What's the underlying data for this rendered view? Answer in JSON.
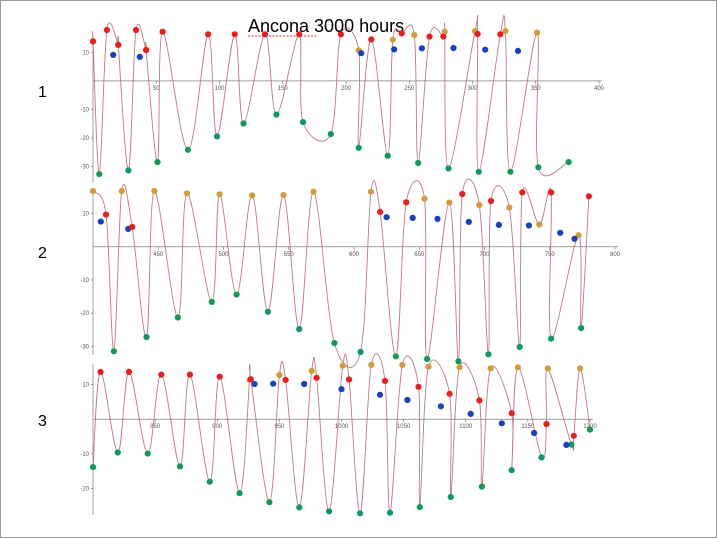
{
  "title": "Ancona  3000 hours",
  "marker_colors": {
    "red": "#ee1c1c",
    "blue": "#1a3fbf",
    "gold": "#d39c3a",
    "green": "#0e9a5c"
  },
  "curve_color": "#b76b73",
  "chart_data": [
    {
      "label": "1",
      "type": "line",
      "x_range": [
        0,
        400
      ],
      "y_range": [
        -35,
        15
      ],
      "x_ticks": [
        "50",
        "100",
        "150",
        "200",
        "250",
        "300",
        "350",
        "400"
      ],
      "y_ticks": [
        "10",
        "-10",
        "-20",
        "-30"
      ],
      "peaks": [
        {
          "x": 0,
          "y": 13.8
        },
        {
          "x": 11,
          "y": 17.8
        },
        {
          "x": 20,
          "y": 12.6
        },
        {
          "x": 34,
          "y": 17.8
        },
        {
          "x": 42,
          "y": 10.8
        },
        {
          "x": 55,
          "y": 17.2
        },
        {
          "x": 91,
          "y": 16.3
        },
        {
          "x": 112,
          "y": 16.3
        },
        {
          "x": 136,
          "y": 16.3
        },
        {
          "x": 163,
          "y": 16.3
        },
        {
          "x": 196,
          "y": 16.3
        },
        {
          "x": 220,
          "y": 14.5
        },
        {
          "x": 244,
          "y": 16.6
        },
        {
          "x": 266,
          "y": 15.5
        },
        {
          "x": 277,
          "y": 15.5
        },
        {
          "x": 304,
          "y": 16.4
        },
        {
          "x": 322,
          "y": 16.3
        }
      ],
      "subpeaks": [
        {
          "x": 16,
          "y": 9.1
        },
        {
          "x": 37,
          "y": 8.4
        },
        {
          "x": 212,
          "y": 9.7
        },
        {
          "x": 238,
          "y": 11.0
        },
        {
          "x": 260,
          "y": 11.4
        },
        {
          "x": 285,
          "y": 11.5
        },
        {
          "x": 310,
          "y": 10.9
        },
        {
          "x": 336,
          "y": 10.5
        }
      ],
      "gold": [
        {
          "x": 0,
          "y": 13.8
        },
        {
          "x": 20,
          "y": 12.6
        },
        {
          "x": 42,
          "y": 10.8
        },
        {
          "x": 210,
          "y": 10.7
        },
        {
          "x": 237,
          "y": 14.4
        },
        {
          "x": 254,
          "y": 16.0
        },
        {
          "x": 278,
          "y": 17.2
        },
        {
          "x": 302,
          "y": 17.4
        },
        {
          "x": 326,
          "y": 17.4
        },
        {
          "x": 351,
          "y": 16.9
        }
      ],
      "troughs": [
        {
          "x": 5,
          "y": -32.6
        },
        {
          "x": 28,
          "y": -31.3
        },
        {
          "x": 51,
          "y": -28.4
        },
        {
          "x": 75,
          "y": -24.1
        },
        {
          "x": 98,
          "y": -19.4
        },
        {
          "x": 119,
          "y": -14.9
        },
        {
          "x": 145,
          "y": -11.8
        },
        {
          "x": 166,
          "y": -14.4
        },
        {
          "x": 188,
          "y": -18.6
        },
        {
          "x": 210,
          "y": -23.4
        },
        {
          "x": 233,
          "y": -26.2
        },
        {
          "x": 257,
          "y": -28.7
        },
        {
          "x": 281,
          "y": -30.6
        },
        {
          "x": 305,
          "y": -31.8
        },
        {
          "x": 330,
          "y": -31.8
        },
        {
          "x": 352,
          "y": -30.2
        },
        {
          "x": 376,
          "y": -28.4
        }
      ]
    },
    {
      "label": "2",
      "type": "line",
      "x_range": [
        400,
        800
      ],
      "y_range": [
        -32,
        15
      ],
      "x_ticks": [
        "450",
        "500",
        "550",
        "600",
        "650",
        "700",
        "750",
        "800"
      ],
      "y_ticks": [
        "10",
        "-10",
        "-20",
        "-30"
      ],
      "peaks": [
        {
          "x": 410,
          "y": 9.7
        },
        {
          "x": 430,
          "y": 6.0
        },
        {
          "x": 620,
          "y": 10.5
        },
        {
          "x": 640,
          "y": 13.4
        },
        {
          "x": 683,
          "y": 15.9
        },
        {
          "x": 705,
          "y": 13.8
        },
        {
          "x": 729,
          "y": 16.4
        },
        {
          "x": 751,
          "y": 16.4
        },
        {
          "x": 780,
          "y": 15.2
        }
      ],
      "subpeaks": [
        {
          "x": 406,
          "y": 7.6
        },
        {
          "x": 427,
          "y": 5.4
        },
        {
          "x": 625,
          "y": 8.9
        },
        {
          "x": 645,
          "y": 8.7
        },
        {
          "x": 664,
          "y": 8.4
        },
        {
          "x": 688,
          "y": 7.5
        },
        {
          "x": 711,
          "y": 6.6
        },
        {
          "x": 734,
          "y": 6.4
        },
        {
          "x": 758,
          "y": 4.2
        },
        {
          "x": 769,
          "y": 2.4
        }
      ],
      "gold": [
        {
          "x": 400,
          "y": 16.8
        },
        {
          "x": 422,
          "y": 16.8
        },
        {
          "x": 447,
          "y": 16.8
        },
        {
          "x": 472,
          "y": 16.1
        },
        {
          "x": 497,
          "y": 15.8
        },
        {
          "x": 522,
          "y": 15.5
        },
        {
          "x": 546,
          "y": 15.6
        },
        {
          "x": 569,
          "y": 16.6
        },
        {
          "x": 613,
          "y": 16.6
        },
        {
          "x": 654,
          "y": 14.5
        },
        {
          "x": 673,
          "y": 13.3
        },
        {
          "x": 696,
          "y": 12.6
        },
        {
          "x": 719,
          "y": 11.8
        },
        {
          "x": 742,
          "y": 6.7
        },
        {
          "x": 772,
          "y": 3.5
        }
      ],
      "troughs": [
        {
          "x": 416,
          "y": -31.5
        },
        {
          "x": 441,
          "y": -27.2
        },
        {
          "x": 465,
          "y": -21.3
        },
        {
          "x": 491,
          "y": -16.6
        },
        {
          "x": 510,
          "y": -14.4
        },
        {
          "x": 534,
          "y": -19.6
        },
        {
          "x": 558,
          "y": -24.8
        },
        {
          "x": 585,
          "y": -29.0
        },
        {
          "x": 605,
          "y": -31.7
        },
        {
          "x": 632,
          "y": -33.0
        },
        {
          "x": 656,
          "y": -33.8
        },
        {
          "x": 680,
          "y": -34.5
        },
        {
          "x": 703,
          "y": -32.4
        },
        {
          "x": 727,
          "y": -30.2
        },
        {
          "x": 751,
          "y": -27.7
        },
        {
          "x": 774,
          "y": -24.5
        }
      ]
    },
    {
      "label": "3",
      "type": "line",
      "x_range": [
        800,
        1200
      ],
      "y_range": [
        -27,
        15
      ],
      "x_ticks": [
        "850",
        "900",
        "950",
        "1000",
        "1050",
        "1100",
        "1150",
        "1200"
      ],
      "y_ticks": [
        "10",
        "-10",
        "-20"
      ],
      "peaks": [
        {
          "x": 806,
          "y": 13.6
        },
        {
          "x": 829,
          "y": 13.6
        },
        {
          "x": 855,
          "y": 12.8
        },
        {
          "x": 878,
          "y": 12.8
        },
        {
          "x": 902,
          "y": 12.2
        },
        {
          "x": 927,
          "y": 11.5
        },
        {
          "x": 955,
          "y": 11.3
        },
        {
          "x": 980,
          "y": 11.9
        },
        {
          "x": 1006,
          "y": 11.4
        },
        {
          "x": 1035,
          "y": 11.0
        },
        {
          "x": 1062,
          "y": 9.3
        },
        {
          "x": 1087,
          "y": 7.3
        },
        {
          "x": 1111,
          "y": 5.4
        },
        {
          "x": 1137,
          "y": 1.7
        },
        {
          "x": 1165,
          "y": -1.4
        },
        {
          "x": 1187,
          "y": -4.8
        }
      ],
      "subpeaks": [
        {
          "x": 930,
          "y": 10.1
        },
        {
          "x": 945,
          "y": 10.2
        },
        {
          "x": 970,
          "y": 10.1
        },
        {
          "x": 1000,
          "y": 8.6
        },
        {
          "x": 1031,
          "y": 7.0
        },
        {
          "x": 1053,
          "y": 5.5
        },
        {
          "x": 1080,
          "y": 3.7
        },
        {
          "x": 1104,
          "y": 1.5
        },
        {
          "x": 1129,
          "y": -1.2
        },
        {
          "x": 1155,
          "y": -4.0
        },
        {
          "x": 1181,
          "y": -7.4
        }
      ],
      "gold": [
        {
          "x": 926,
          "y": 11.3
        },
        {
          "x": 950,
          "y": 12.7
        },
        {
          "x": 976,
          "y": 13.9
        },
        {
          "x": 1001,
          "y": 15.4
        },
        {
          "x": 1024,
          "y": 15.6
        },
        {
          "x": 1049,
          "y": 15.6
        },
        {
          "x": 1070,
          "y": 15.1
        },
        {
          "x": 1095,
          "y": 14.9
        },
        {
          "x": 1120,
          "y": 14.6
        },
        {
          "x": 1142,
          "y": 14.9
        },
        {
          "x": 1166,
          "y": 14.6
        },
        {
          "x": 1192,
          "y": 14.6
        }
      ],
      "troughs": [
        {
          "x": 800,
          "y": -13.8
        },
        {
          "x": 820,
          "y": -9.6
        },
        {
          "x": 844,
          "y": -9.9
        },
        {
          "x": 870,
          "y": -13.6
        },
        {
          "x": 894,
          "y": -18.0
        },
        {
          "x": 918,
          "y": -21.3
        },
        {
          "x": 942,
          "y": -23.9
        },
        {
          "x": 966,
          "y": -25.4
        },
        {
          "x": 990,
          "y": -26.5
        },
        {
          "x": 1015,
          "y": -27.1
        },
        {
          "x": 1039,
          "y": -26.9
        },
        {
          "x": 1063,
          "y": -25.3
        },
        {
          "x": 1088,
          "y": -22.4
        },
        {
          "x": 1113,
          "y": -19.4
        },
        {
          "x": 1137,
          "y": -14.7
        },
        {
          "x": 1161,
          "y": -11.0
        },
        {
          "x": 1185,
          "y": -7.3
        },
        {
          "x": 1200,
          "y": -3.0
        }
      ]
    }
  ]
}
